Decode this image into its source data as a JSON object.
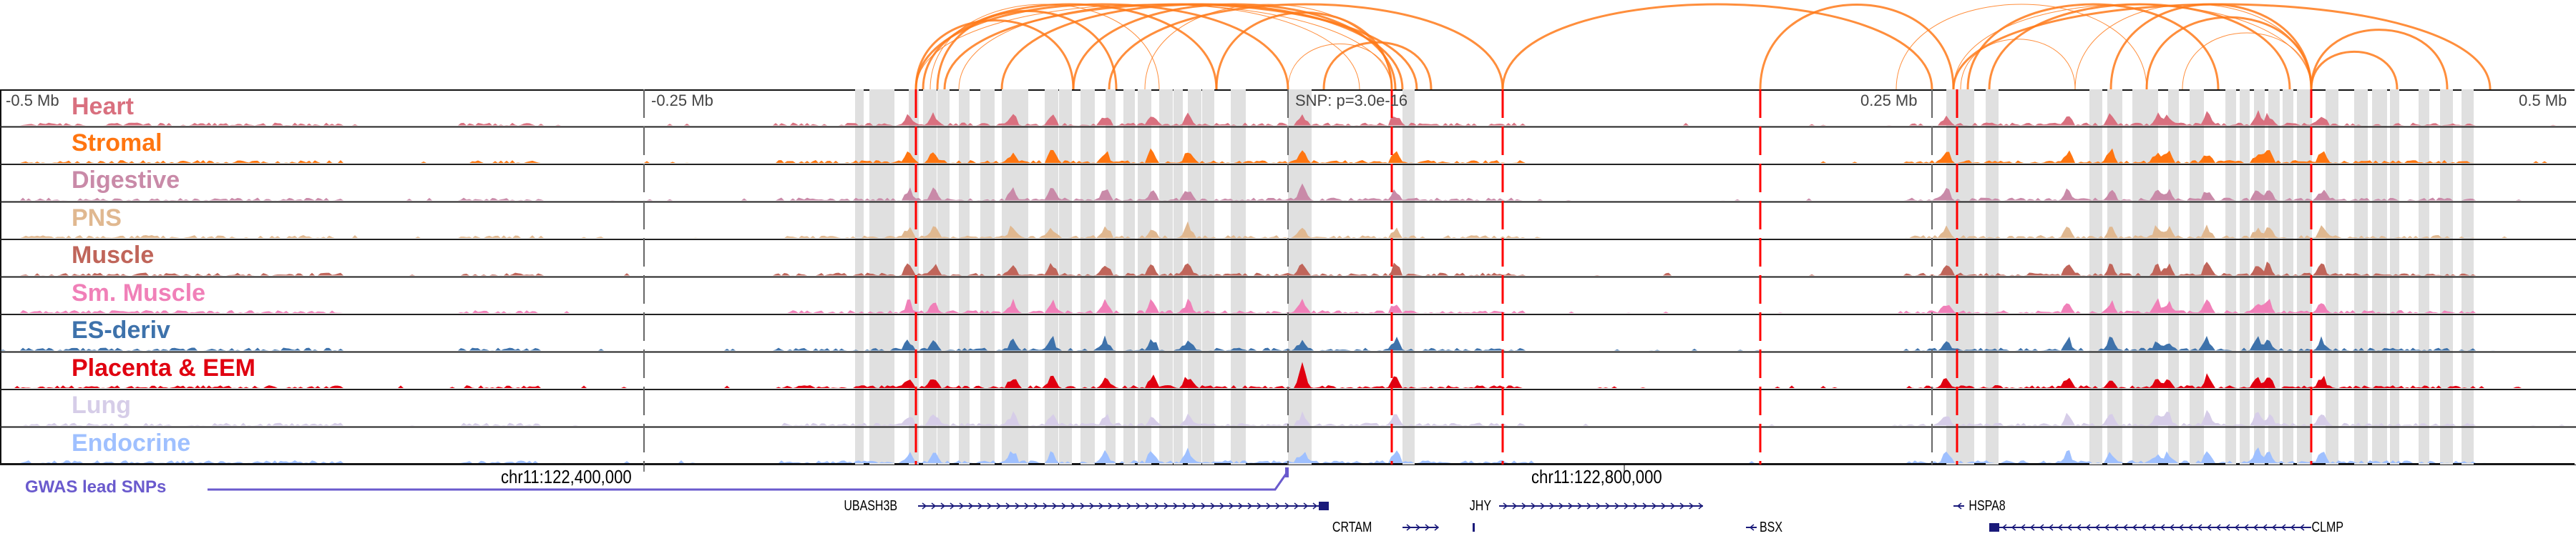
{
  "ruler": {
    "labels": [
      "-0.5 Mb",
      "-0.25 Mb",
      "0.25 Mb",
      "0.5 Mb"
    ],
    "snp_label": "SNP: p=3.0e-16"
  },
  "tracks": [
    {
      "name": "Heart",
      "color": "#d9707f"
    },
    {
      "name": "Stromal",
      "color": "#ff7510"
    },
    {
      "name": "Digestive",
      "color": "#c98aa8"
    },
    {
      "name": "PNS",
      "color": "#e0b890"
    },
    {
      "name": "Muscle",
      "color": "#c0655a"
    },
    {
      "name": "Sm. Muscle",
      "color": "#f080b8"
    },
    {
      "name": "ES-deriv",
      "color": "#3e72ab"
    },
    {
      "name": "Placenta & EEM",
      "color": "#e00010"
    },
    {
      "name": "Lung",
      "color": "#d6cde8"
    },
    {
      "name": "Endocrine",
      "color": "#9fc0ff"
    }
  ],
  "gwas_label": "GWAS lead SNPs",
  "coordinates": [
    "chr11:122,400,000",
    "chr11:122,800,000"
  ],
  "genes": [
    {
      "name": "UBASH3B",
      "strand": "+"
    },
    {
      "name": "CRTAM",
      "strand": "+"
    },
    {
      "name": "JHY",
      "strand": "+"
    },
    {
      "name": "BSX",
      "strand": "-"
    },
    {
      "name": "HSPA8",
      "strand": "-"
    },
    {
      "name": "CLMP",
      "strand": "-"
    }
  ],
  "colors": {
    "arc": "#ff7a1a",
    "highlight": "#e0e0e0",
    "red_line": "#ff0000",
    "gwas": "#6a5acd",
    "gene": "#1a1a7a"
  }
}
